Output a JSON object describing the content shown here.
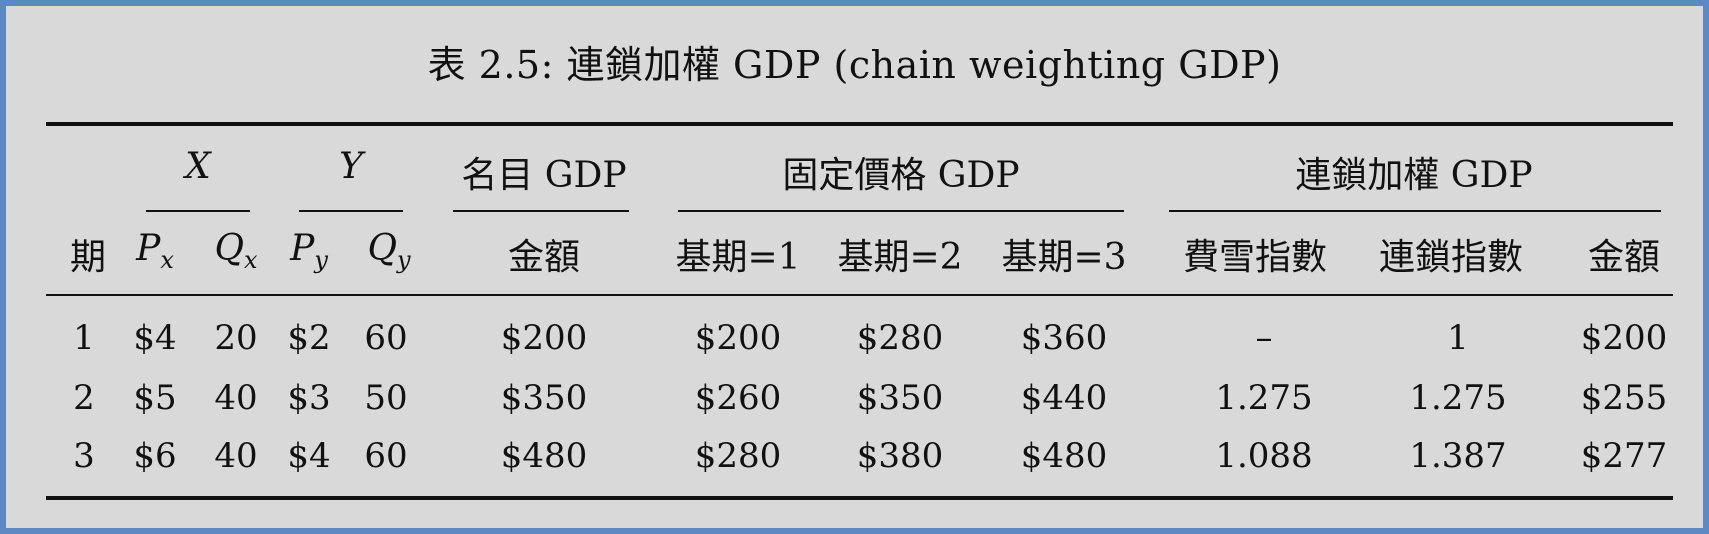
{
  "caption": "表 2.5: 連鎖加權 GDP (chain weighting GDP)",
  "group_headers": {
    "x": "X",
    "y": "Y",
    "nominal": "名目 GDP",
    "fixed": "固定價格 GDP",
    "chain": "連鎖加權 GDP"
  },
  "sub_headers": {
    "period": "期",
    "px_base": "P",
    "px_sub": "x",
    "qx_base": "Q",
    "qx_sub": "x",
    "py_base": "P",
    "py_sub": "y",
    "qy_base": "Q",
    "qy_sub": "y",
    "nominal_amount": "金額",
    "base1": "基期=1",
    "base2": "基期=2",
    "base3": "基期=3",
    "fisher": "費雪指數",
    "chain_index": "連鎖指數",
    "chain_amount": "金額"
  },
  "rows": [
    {
      "period": "1",
      "px": "$4",
      "qx": "20",
      "py": "$2",
      "qy": "60",
      "nominal": "$200",
      "b1": "$200",
      "b2": "$280",
      "b3": "$360",
      "fisher": "–",
      "chain": "1",
      "amount": "$200"
    },
    {
      "period": "2",
      "px": "$5",
      "qx": "40",
      "py": "$3",
      "qy": "50",
      "nominal": "$350",
      "b1": "$260",
      "b2": "$350",
      "b3": "$440",
      "fisher": "1.275",
      "chain": "1.275",
      "amount": "$255"
    },
    {
      "period": "3",
      "px": "$6",
      "qx": "40",
      "py": "$4",
      "qy": "60",
      "nominal": "$480",
      "b1": "$280",
      "b2": "$380",
      "b3": "$480",
      "fisher": "1.088",
      "chain": "1.387",
      "amount": "$277"
    }
  ]
}
